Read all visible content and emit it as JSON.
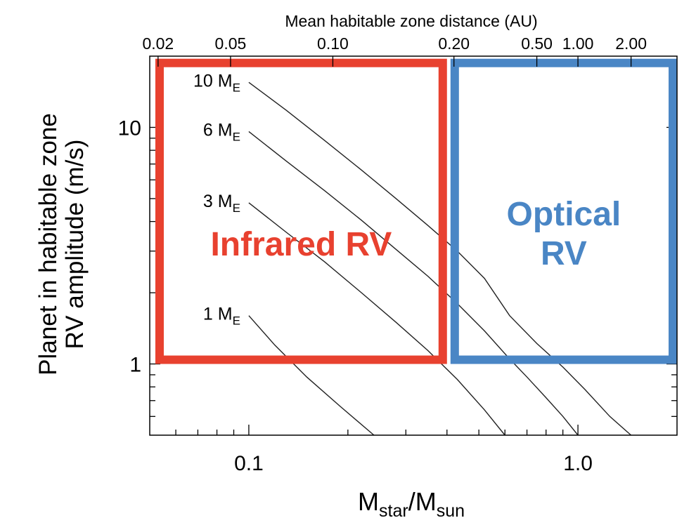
{
  "chart_data": {
    "type": "line",
    "xlabel": "M",
    "xlabel_sub": "star",
    "xlabel_sep": "/M",
    "xlabel_sub2": "sun",
    "x2label": "Mean habitable zone distance (AU)",
    "ylabel_line1": "Planet in habitable zone",
    "ylabel_line2": "RV amplitude (m/s)",
    "xscale": "log",
    "yscale": "log",
    "xlim": [
      0.05,
      2.0
    ],
    "ylim": [
      0.5,
      20
    ],
    "x_ticks": [
      {
        "value": 0.1,
        "label": "0.1"
      },
      {
        "value": 1.0,
        "label": "1.0"
      }
    ],
    "y_ticks": [
      {
        "value": 1,
        "label": "1"
      },
      {
        "value": 10,
        "label": "10"
      }
    ],
    "x2_ticks": [
      {
        "value": 0.053,
        "label": "0.02"
      },
      {
        "value": 0.088,
        "label": "0.05"
      },
      {
        "value": 0.18,
        "label": "0.10"
      },
      {
        "value": 0.42,
        "label": "0.20"
      },
      {
        "value": 0.75,
        "label": "0.50"
      },
      {
        "value": 1.0,
        "label": "1.00"
      },
      {
        "value": 1.45,
        "label": "2.00"
      }
    ],
    "series": [
      {
        "name": "10",
        "unit": "M",
        "unit_sub": "E",
        "x": [
          0.1,
          0.13,
          0.17,
          0.22,
          0.28,
          0.35,
          0.43,
          0.52,
          0.62,
          0.75,
          0.9,
          1.05,
          1.25,
          1.45
        ],
        "y": [
          15.5,
          11.8,
          8.8,
          6.6,
          5.0,
          3.85,
          3.0,
          2.3,
          1.6,
          1.22,
          0.97,
          0.78,
          0.6,
          0.5
        ]
      },
      {
        "name": "6",
        "unit": "M",
        "unit_sub": "E",
        "x": [
          0.1,
          0.13,
          0.17,
          0.22,
          0.28,
          0.35,
          0.43,
          0.52,
          0.62,
          0.7,
          0.8,
          0.9,
          1.0
        ],
        "y": [
          9.6,
          7.2,
          5.4,
          4.05,
          3.05,
          2.35,
          1.8,
          1.38,
          1.05,
          0.88,
          0.72,
          0.6,
          0.5
        ]
      },
      {
        "name": "3",
        "unit": "M",
        "unit_sub": "E",
        "x": [
          0.1,
          0.13,
          0.17,
          0.22,
          0.28,
          0.35,
          0.43,
          0.52,
          0.6
        ],
        "y": [
          4.8,
          3.6,
          2.7,
          2.0,
          1.5,
          1.14,
          0.86,
          0.64,
          0.5
        ]
      },
      {
        "name": "1",
        "unit": "M",
        "unit_sub": "E",
        "x": [
          0.1,
          0.12,
          0.15,
          0.19,
          0.24
        ],
        "y": [
          1.6,
          1.2,
          0.88,
          0.66,
          0.5
        ]
      }
    ],
    "regions": [
      {
        "label": "Infrared RV",
        "lines": [
          "Infrared RV"
        ],
        "x": [
          0.052,
          0.4
        ],
        "y": [
          1.0,
          19.5
        ],
        "color": "#e8412f"
      },
      {
        "label": "Optical RV",
        "lines": [
          "Optical",
          "RV"
        ],
        "x": [
          0.41,
          2.0
        ],
        "y": [
          1.0,
          19.5
        ],
        "color": "#4a86c5"
      }
    ]
  }
}
